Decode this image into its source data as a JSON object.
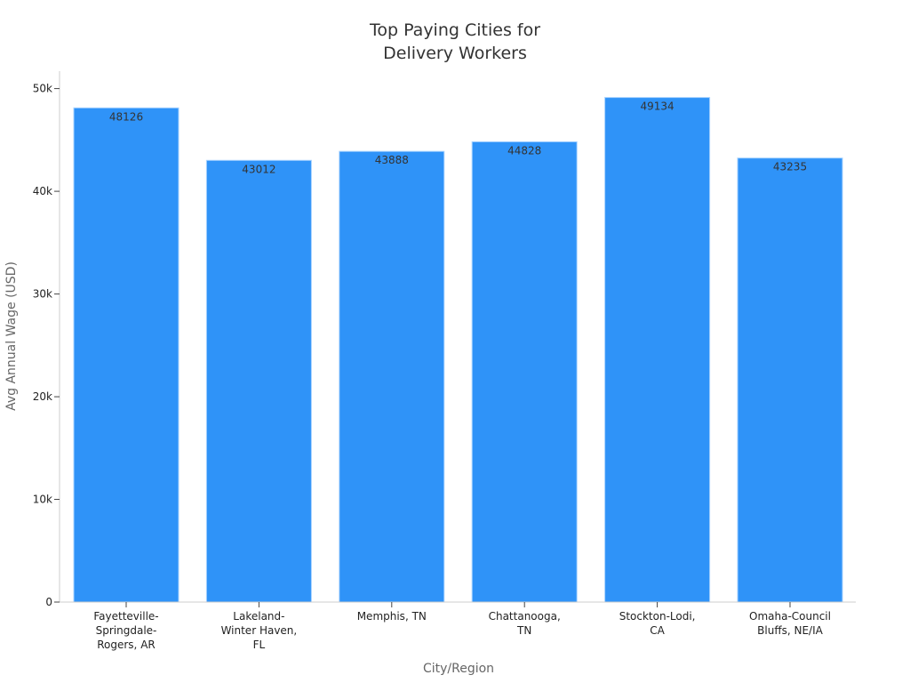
{
  "chart_data": {
    "type": "bar",
    "title_lines": [
      "Top Paying Cities for",
      "Delivery Workers"
    ],
    "xlabel": "City/Region",
    "ylabel": "Avg Annual Wage (USD)",
    "categories": [
      [
        "Fayetteville-",
        "Springdale-",
        "Rogers, AR"
      ],
      [
        "Lakeland-",
        "Winter Haven,",
        "FL"
      ],
      [
        "Memphis, TN"
      ],
      [
        "Chattanooga,",
        "TN"
      ],
      [
        "Stockton-Lodi,",
        "CA"
      ],
      [
        "Omaha-Council",
        "Bluffs, NE/IA"
      ]
    ],
    "values": [
      48126,
      43012,
      43888,
      44828,
      49134,
      43235
    ],
    "data_labels": [
      "48126",
      "43012",
      "43888",
      "44828",
      "49134",
      "43235"
    ],
    "ylim": [
      0,
      51700
    ],
    "yticks": [
      0,
      10000,
      20000,
      30000,
      40000,
      50000
    ],
    "ytick_labels": [
      "0",
      "10k",
      "20k",
      "30k",
      "40k",
      "50k"
    ],
    "grid": false,
    "legend": "none",
    "colors": {
      "bar": "#2f93f8",
      "bar_edge": "#a8d3ff",
      "axis": "#cccccc",
      "tick": "#444444"
    }
  }
}
